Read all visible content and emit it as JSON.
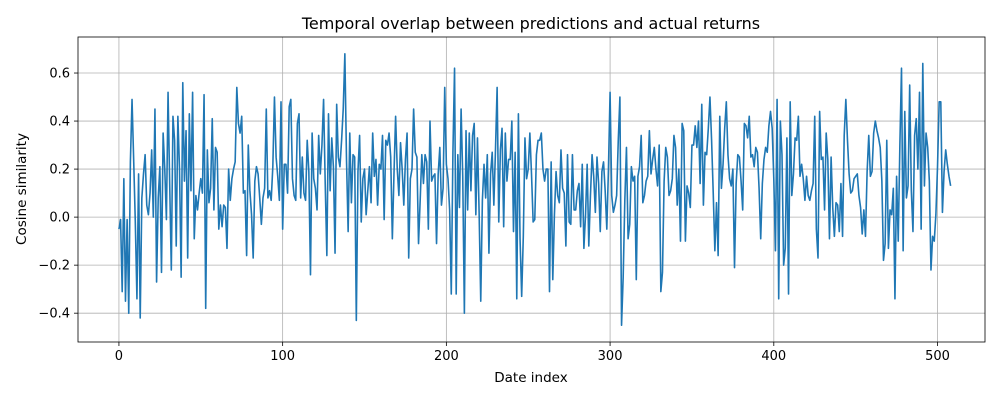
{
  "chart_data": {
    "type": "line",
    "title": "Temporal overlap between predictions and actual returns",
    "xlabel": "Date index",
    "ylabel": "Cosine similarity",
    "xlim": [
      -25,
      529
    ],
    "ylim": [
      -0.52,
      0.75
    ],
    "xticks": [
      0,
      100,
      200,
      300,
      400,
      500
    ],
    "yticks": [
      -0.4,
      -0.2,
      0.0,
      0.2,
      0.4,
      0.6
    ],
    "xtick_labels": [
      "0",
      "100",
      "200",
      "300",
      "400",
      "500"
    ],
    "ytick_labels": [
      "−0.4",
      "−0.2",
      "0.0",
      "0.2",
      "0.4",
      "0.6"
    ],
    "grid": true,
    "line_color": "#1f77b4",
    "series": [
      {
        "x_start": 0,
        "x_step": 1,
        "values": [
          -0.05,
          -0.01,
          -0.31,
          0.16,
          -0.35,
          -0.01,
          -0.4,
          0.23,
          0.49,
          0.24,
          -0.02,
          -0.34,
          0.18,
          -0.42,
          0.08,
          0.18,
          0.26,
          0.05,
          0.01,
          0.1,
          0.28,
          0.0,
          0.45,
          -0.27,
          0.08,
          0.21,
          -0.23,
          0.35,
          0.2,
          -0.01,
          0.52,
          0.14,
          -0.22,
          0.42,
          0.32,
          -0.12,
          0.42,
          0.2,
          -0.25,
          0.56,
          0.15,
          0.36,
          -0.17,
          0.43,
          0.11,
          0.52,
          -0.09,
          0.09,
          0.03,
          0.1,
          0.16,
          0.1,
          0.51,
          -0.38,
          0.28,
          0.06,
          0.12,
          0.41,
          0.03,
          0.29,
          0.27,
          -0.05,
          0.05,
          -0.04,
          0.05,
          0.04,
          -0.13,
          0.2,
          0.07,
          0.16,
          0.2,
          0.23,
          0.54,
          0.39,
          0.35,
          0.42,
          0.1,
          0.11,
          -0.16,
          0.3,
          0.11,
          0.01,
          -0.17,
          0.15,
          0.21,
          0.18,
          0.08,
          -0.03,
          0.08,
          0.12,
          0.45,
          0.08,
          0.11,
          0.07,
          0.21,
          0.5,
          0.25,
          0.17,
          0.07,
          0.48,
          -0.05,
          0.22,
          0.22,
          0.1,
          0.46,
          0.49,
          0.16,
          0.09,
          0.07,
          0.39,
          0.43,
          0.08,
          0.25,
          0.1,
          0.07,
          0.32,
          0.19,
          -0.24,
          0.35,
          0.16,
          0.12,
          0.03,
          0.34,
          0.18,
          0.3,
          0.49,
          0.14,
          -0.16,
          0.43,
          0.11,
          0.33,
          0.21,
          -0.15,
          0.47,
          0.25,
          0.21,
          0.32,
          0.45,
          0.68,
          0.24,
          -0.06,
          0.35,
          0.06,
          0.26,
          0.25,
          -0.43,
          0.19,
          0.34,
          -0.02,
          0.16,
          0.2,
          0.01,
          0.11,
          0.21,
          0.06,
          0.35,
          0.17,
          0.24,
          0.05,
          0.22,
          0.2,
          0.34,
          -0.01,
          0.32,
          0.3,
          0.35,
          0.25,
          -0.09,
          0.18,
          0.42,
          0.2,
          0.09,
          0.31,
          0.2,
          0.05,
          0.24,
          0.35,
          -0.17,
          0.16,
          0.2,
          0.45,
          0.27,
          0.25,
          -0.11,
          0.07,
          0.26,
          0.14,
          0.26,
          0.23,
          -0.05,
          0.4,
          0.15,
          0.17,
          0.18,
          -0.11,
          0.18,
          0.29,
          0.05,
          0.12,
          0.54,
          0.22,
          0.16,
          0.03,
          -0.32,
          0.27,
          0.62,
          -0.32,
          0.26,
          0.04,
          0.45,
          0.17,
          -0.4,
          0.36,
          0.03,
          0.35,
          0.11,
          0.34,
          0.39,
          0.01,
          0.33,
          0.02,
          -0.35,
          0.07,
          0.22,
          0.08,
          0.26,
          -0.15,
          0.18,
          0.27,
          0.05,
          0.28,
          0.54,
          -0.02,
          0.28,
          0.37,
          -0.04,
          0.35,
          0.15,
          0.24,
          0.24,
          0.4,
          -0.06,
          0.27,
          -0.34,
          0.43,
          -0.09,
          -0.33,
          -0.08,
          0.33,
          0.16,
          0.2,
          0.35,
          0.18,
          -0.02,
          -0.01,
          0.26,
          0.32,
          0.32,
          0.35,
          0.2,
          0.15,
          0.2,
          0.2,
          -0.31,
          0.23,
          -0.26,
          0.01,
          0.19,
          0.09,
          0.06,
          0.28,
          0.12,
          0.1,
          -0.12,
          0.26,
          -0.02,
          -0.03,
          0.26,
          0.03,
          0.03,
          0.11,
          0.14,
          -0.04,
          0.22,
          -0.13,
          0.01,
          0.22,
          -0.12,
          0.09,
          0.26,
          0.17,
          0.02,
          0.25,
          0.14,
          -0.06,
          0.19,
          0.23,
          0.11,
          -0.05,
          0.2,
          0.52,
          0.09,
          0.02,
          0.05,
          0.09,
          0.32,
          0.5,
          -0.45,
          -0.25,
          0.07,
          0.29,
          -0.09,
          -0.03,
          0.21,
          0.15,
          0.17,
          -0.26,
          0.17,
          0.21,
          0.34,
          0.06,
          0.09,
          0.15,
          0.17,
          0.36,
          0.18,
          0.24,
          0.29,
          0.2,
          0.13,
          0.3,
          -0.31,
          -0.23,
          0.15,
          0.29,
          0.25,
          0.09,
          0.11,
          0.16,
          0.34,
          0.29,
          0.05,
          0.2,
          -0.1,
          0.39,
          0.36,
          -0.1,
          0.13,
          0.1,
          0.04,
          0.3,
          0.3,
          0.38,
          0.29,
          0.4,
          0.14,
          0.47,
          0.05,
          0.27,
          0.26,
          0.37,
          0.5,
          0.32,
          0.1,
          -0.14,
          0.06,
          -0.16,
          0.42,
          0.12,
          0.22,
          0.37,
          0.48,
          0.26,
          0.16,
          0.13,
          0.2,
          -0.21,
          0.14,
          0.26,
          0.25,
          0.15,
          0.03,
          0.39,
          0.38,
          0.33,
          0.42,
          0.25,
          0.26,
          0.21,
          0.29,
          0.27,
          0.12,
          -0.09,
          0.14,
          0.24,
          0.29,
          0.27,
          0.38,
          0.44,
          0.37,
          0.16,
          -0.14,
          0.49,
          -0.34,
          0.4,
          0.26,
          -0.2,
          -0.13,
          0.33,
          -0.32,
          0.48,
          0.09,
          0.18,
          0.33,
          0.32,
          0.42,
          0.17,
          0.22,
          0.16,
          0.07,
          0.17,
          0.09,
          0.07,
          0.11,
          0.14,
          0.42,
          -0.05,
          -0.17,
          0.44,
          0.24,
          0.25,
          0.03,
          0.35,
          0.24,
          -0.09,
          0.25,
          0.04,
          -0.08,
          0.06,
          0.05,
          -0.06,
          0.14,
          -0.08,
          0.34,
          0.49,
          0.32,
          0.18,
          0.1,
          0.11,
          0.16,
          0.17,
          0.18,
          0.09,
          0.04,
          -0.07,
          0.03,
          -0.08,
          0.19,
          0.34,
          0.17,
          0.19,
          0.35,
          0.4,
          0.36,
          0.33,
          0.29,
          0.15,
          -0.18,
          -0.11,
          0.32,
          -0.13,
          0.03,
          0.01,
          0.12,
          -0.34,
          0.17,
          -0.1,
          0.3,
          0.62,
          -0.14,
          0.44,
          0.08,
          0.13,
          0.55,
          0.11,
          -0.06,
          0.34,
          0.41,
          0.2,
          0.52,
          -0.05,
          0.64,
          0.13,
          0.35,
          0.29,
          0.15,
          -0.22,
          -0.08,
          -0.1,
          0.01,
          0.21,
          0.48,
          0.48,
          0.02,
          0.19,
          0.28,
          0.22,
          0.17,
          0.13
        ]
      }
    ]
  }
}
